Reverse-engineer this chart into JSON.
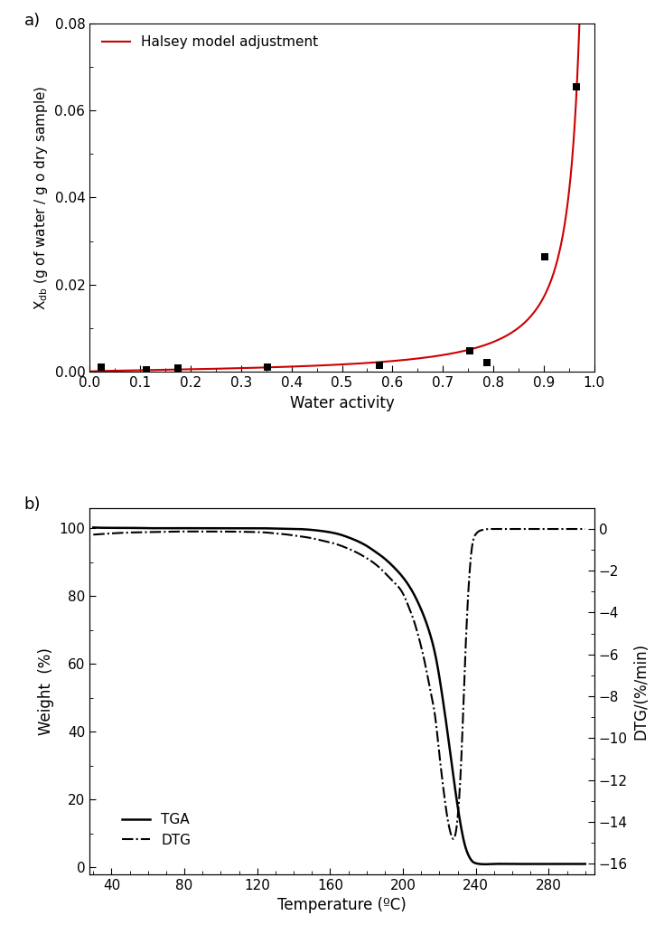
{
  "panel_a": {
    "scatter_x": [
      0.023,
      0.113,
      0.175,
      0.353,
      0.575,
      0.753,
      0.787,
      0.901,
      0.964
    ],
    "scatter_y": [
      0.00105,
      0.00055,
      0.00085,
      0.00115,
      0.00155,
      0.0048,
      0.0022,
      0.0265,
      0.0655
    ],
    "halsey_k": 0.001105,
    "halsey_n": 1.22,
    "xlabel": "Water activity",
    "ylabel": "X$_\\mathregular{db}$ (g of water / g o dry sample)",
    "xlim": [
      0.0,
      1.0
    ],
    "ylim": [
      0.0,
      0.08
    ],
    "xticks": [
      0.0,
      0.1,
      0.2,
      0.3,
      0.4,
      0.5,
      0.6,
      0.7,
      0.8,
      0.9,
      1.0
    ],
    "yticks": [
      0.0,
      0.02,
      0.04,
      0.06,
      0.08
    ],
    "legend_label": "Halsey model adjustment",
    "line_color": "#cc0000",
    "scatter_color": "black",
    "marker": "s",
    "marker_size": 6
  },
  "panel_b": {
    "tga_temp": [
      30,
      40,
      50,
      60,
      70,
      80,
      90,
      100,
      110,
      120,
      130,
      140,
      150,
      155,
      160,
      165,
      170,
      175,
      180,
      185,
      190,
      195,
      200,
      205,
      210,
      215,
      218,
      220,
      222,
      224,
      226,
      228,
      230,
      232,
      234,
      236,
      238,
      240,
      242,
      250,
      260,
      270,
      280,
      290,
      300
    ],
    "tga_weight": [
      100.2,
      100.1,
      100.1,
      100.0,
      100.0,
      100.0,
      100.0,
      100.0,
      100.0,
      100.0,
      99.9,
      99.8,
      99.5,
      99.2,
      98.8,
      98.2,
      97.3,
      96.2,
      94.8,
      93.0,
      91.0,
      88.5,
      85.5,
      81.5,
      76.0,
      68.5,
      62.0,
      56.0,
      49.0,
      41.5,
      33.5,
      25.5,
      18.0,
      11.5,
      6.5,
      3.5,
      1.8,
      1.2,
      1.0,
      1.0,
      1.0,
      1.0,
      1.0,
      1.0,
      1.0
    ],
    "dtg_temp": [
      30,
      40,
      50,
      60,
      70,
      80,
      90,
      100,
      110,
      120,
      125,
      130,
      135,
      140,
      145,
      150,
      155,
      160,
      165,
      170,
      175,
      180,
      185,
      190,
      195,
      200,
      203,
      206,
      209,
      212,
      215,
      218,
      220,
      222,
      224,
      226,
      228,
      230,
      232,
      234,
      236,
      238,
      240,
      242,
      244,
      246,
      248,
      250,
      260,
      270,
      280,
      290,
      300
    ],
    "dtg_signal": [
      -0.28,
      -0.22,
      -0.18,
      -0.16,
      -0.14,
      -0.13,
      -0.13,
      -0.13,
      -0.14,
      -0.16,
      -0.18,
      -0.22,
      -0.26,
      -0.32,
      -0.38,
      -0.45,
      -0.55,
      -0.65,
      -0.78,
      -0.95,
      -1.15,
      -1.4,
      -1.7,
      -2.1,
      -2.55,
      -3.1,
      -3.7,
      -4.4,
      -5.3,
      -6.4,
      -7.7,
      -9.2,
      -10.8,
      -12.3,
      -13.6,
      -14.5,
      -14.8,
      -13.8,
      -11.0,
      -6.5,
      -2.8,
      -0.8,
      -0.25,
      -0.1,
      -0.05,
      -0.02,
      -0.01,
      -0.01,
      -0.01,
      -0.01,
      -0.01,
      -0.01,
      -0.01
    ],
    "xlabel": "Temperature (ºC)",
    "ylabel_left": "Weight  (%)",
    "ylabel_right": "DTG/(%/min)",
    "xlim": [
      28,
      305
    ],
    "ylim_left": [
      -2,
      106
    ],
    "ylim_right": [
      -16.5,
      1.0
    ],
    "xticks": [
      40,
      80,
      120,
      160,
      200,
      240,
      280
    ],
    "yticks_left": [
      0,
      20,
      40,
      60,
      80,
      100
    ],
    "yticks_right": [
      0,
      -2,
      -4,
      -6,
      -8,
      -10,
      -12,
      -14,
      -16
    ],
    "tga_color": "black",
    "dtg_color": "black",
    "legend_tga": "TGA",
    "legend_dtg": "DTG"
  }
}
